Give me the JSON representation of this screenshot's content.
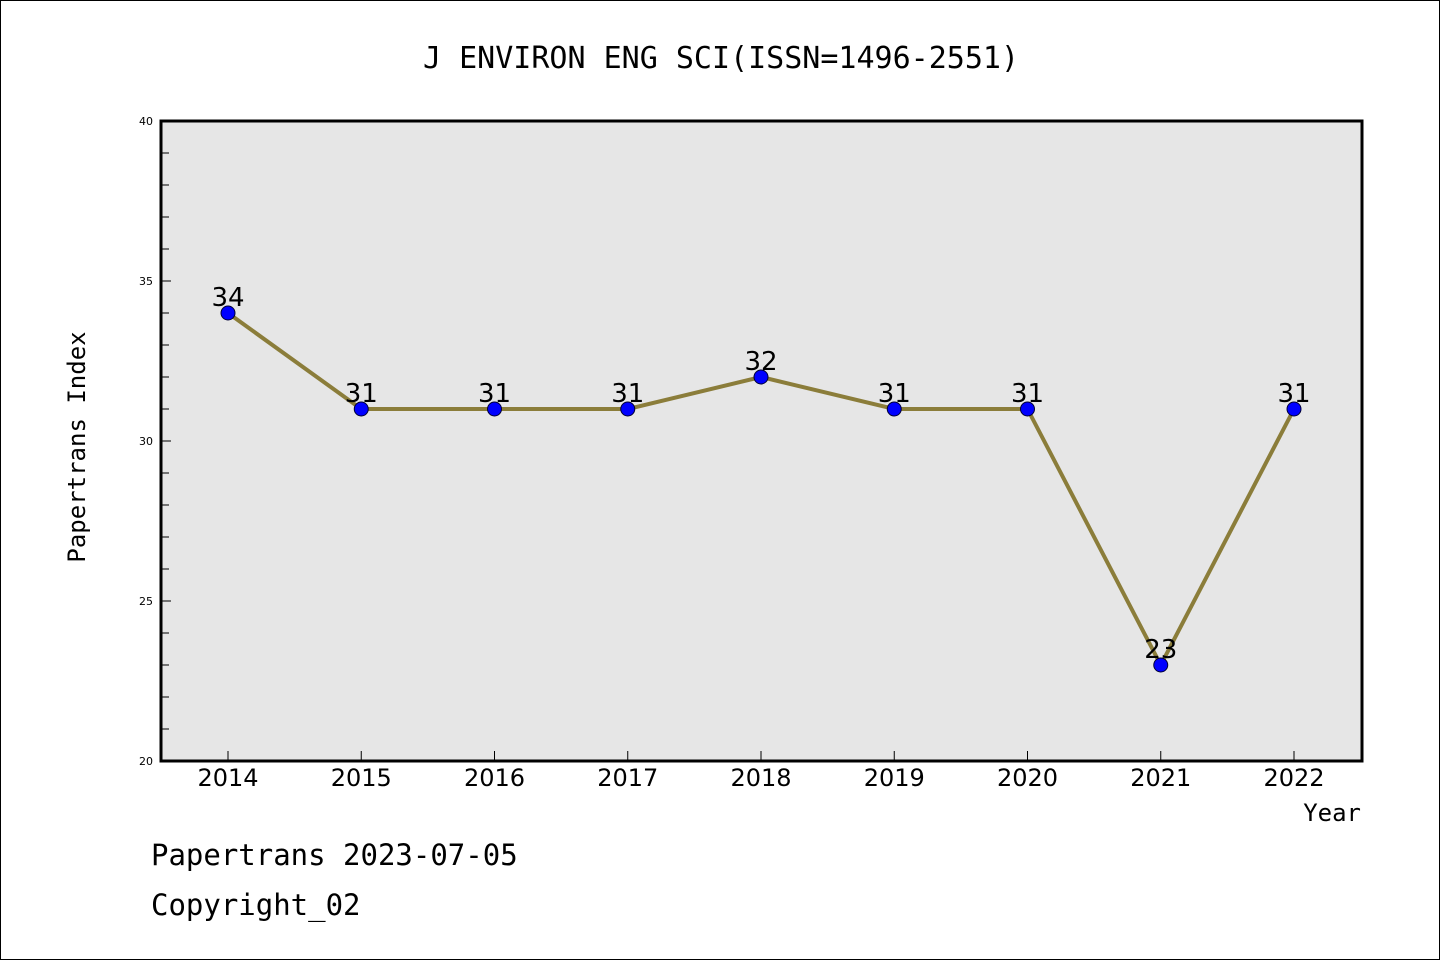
{
  "chart_data": {
    "type": "line",
    "title": "J ENVIRON ENG SCI(ISSN=1496-2551)",
    "xlabel": "Year",
    "ylabel": "Papertrans Index",
    "categories": [
      "2014",
      "2015",
      "2016",
      "2017",
      "2018",
      "2019",
      "2020",
      "2021",
      "2022"
    ],
    "series": [
      {
        "values": [
          34,
          31,
          31,
          31,
          32,
          31,
          31,
          23,
          31
        ]
      }
    ],
    "ylim": [
      20,
      40
    ],
    "yticks": [
      "20",
      "25",
      "30",
      "35",
      "40"
    ],
    "grid": false,
    "legend": "none",
    "colors": {
      "line": "#8B7D3A",
      "marker": "#0000FF",
      "plot_background": "#E6E6E6"
    }
  },
  "footer": {
    "line1": "Papertrans 2023-07-05",
    "line2": "Copyright_02"
  }
}
